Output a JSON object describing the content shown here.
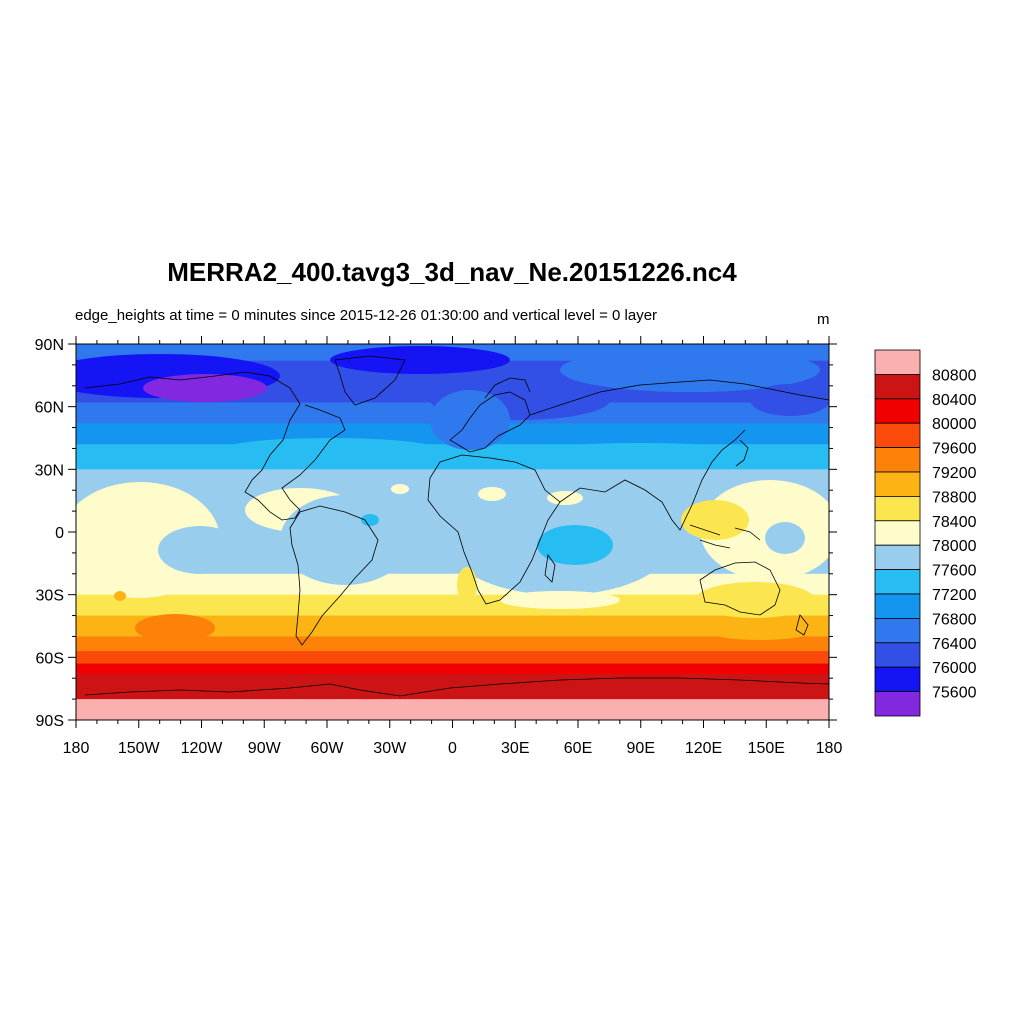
{
  "title": "MERRA2_400.tavg3_3d_nav_Ne.20151226.nc4",
  "subtitle": "edge_heights at time = 0 minutes since 2015-12-26 01:30:00 and vertical level = 0 layer",
  "units": "m",
  "chart_data": {
    "type": "heatmap",
    "projection": "cylindrical-equidistant",
    "x_range": [
      -180,
      180
    ],
    "y_range": [
      -90,
      90
    ],
    "x_ticks": [
      {
        "value": -180,
        "label": "180"
      },
      {
        "value": -150,
        "label": "150W"
      },
      {
        "value": -120,
        "label": "120W"
      },
      {
        "value": -90,
        "label": "90W"
      },
      {
        "value": -60,
        "label": "60W"
      },
      {
        "value": -30,
        "label": "30W"
      },
      {
        "value": 0,
        "label": "0"
      },
      {
        "value": 30,
        "label": "30E"
      },
      {
        "value": 60,
        "label": "60E"
      },
      {
        "value": 90,
        "label": "90E"
      },
      {
        "value": 120,
        "label": "120E"
      },
      {
        "value": 150,
        "label": "150E"
      },
      {
        "value": 180,
        "label": "180"
      }
    ],
    "y_ticks": [
      {
        "value": 90,
        "label": "90N"
      },
      {
        "value": 60,
        "label": "60N"
      },
      {
        "value": 30,
        "label": "30N"
      },
      {
        "value": 0,
        "label": "0"
      },
      {
        "value": -30,
        "label": "30S"
      },
      {
        "value": -60,
        "label": "60S"
      },
      {
        "value": -90,
        "label": "90S"
      }
    ],
    "colorbar": {
      "levels": [
        "80800",
        "80400",
        "80000",
        "79600",
        "79200",
        "78800",
        "78400",
        "78000",
        "77600",
        "77200",
        "76800",
        "76400",
        "76000",
        "75600"
      ],
      "colors": [
        "#fbb0b0",
        "#cc1414",
        "#f00000",
        "#fa4b0a",
        "#fc820a",
        "#fcb414",
        "#fce650",
        "#fffccc",
        "#98cdee",
        "#27bdf2",
        "#1496f0",
        "#3078ee",
        "#3250e6",
        "#1414f5",
        "#8228e1"
      ]
    },
    "bands": [
      {
        "lat_north": 90,
        "lat_south": 82,
        "color": "#3078ee"
      },
      {
        "lat_north": 82,
        "lat_south": 62,
        "color": "#3250e6"
      },
      {
        "lat_north": 62,
        "lat_south": 52,
        "color": "#3078ee"
      },
      {
        "lat_north": 52,
        "lat_south": 42,
        "color": "#1496f0"
      },
      {
        "lat_north": 42,
        "lat_south": 30,
        "color": "#27bdf2"
      },
      {
        "lat_north": 30,
        "lat_south": 20,
        "color": "#98cdee"
      },
      {
        "lat_north": 20,
        "lat_south": -20,
        "color": "#98cdee"
      },
      {
        "lat_north": -20,
        "lat_south": -30,
        "color": "#fffccc"
      },
      {
        "lat_north": -30,
        "lat_south": -40,
        "color": "#fce650"
      },
      {
        "lat_north": -40,
        "lat_south": -50,
        "color": "#fcb414"
      },
      {
        "lat_north": -50,
        "lat_south": -57,
        "color": "#fc820a"
      },
      {
        "lat_north": -57,
        "lat_south": -63,
        "color": "#fa4b0a"
      },
      {
        "lat_north": -63,
        "lat_south": -68,
        "color": "#f00000"
      },
      {
        "lat_north": -68,
        "lat_south": -80,
        "color": "#cc1414"
      },
      {
        "lat_north": -80,
        "lat_south": -90,
        "color": "#fbb0b0"
      }
    ]
  }
}
